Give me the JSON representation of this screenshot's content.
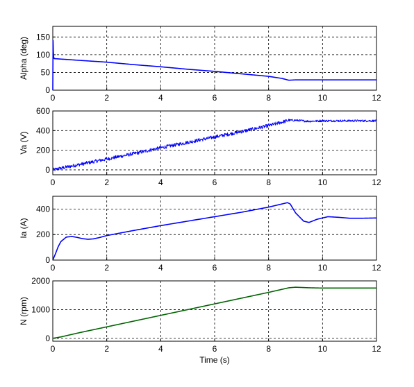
{
  "chart_data": [
    {
      "type": "line",
      "title": "",
      "xlabel": "",
      "ylabel": "Alpha (deg)",
      "xlim": [
        0,
        12
      ],
      "ylim": [
        0,
        180
      ],
      "xticks": [
        0,
        2,
        4,
        6,
        8,
        10,
        12
      ],
      "yticks": [
        0,
        50,
        100,
        150
      ],
      "grid": true,
      "series": [
        {
          "color": "#0000ff",
          "x": [
            0,
            0.01,
            0.02,
            0.03,
            0.05,
            1,
            2,
            3,
            4,
            5,
            6,
            7,
            8,
            8.5,
            8.75,
            9,
            10,
            11,
            12
          ],
          "y": [
            0,
            140,
            110,
            95,
            89,
            84,
            79,
            72,
            66,
            59,
            53,
            46,
            39,
            33,
            28,
            29,
            29,
            29,
            29
          ]
        }
      ]
    },
    {
      "type": "line",
      "title": "",
      "xlabel": "",
      "ylabel": "Va (V)",
      "xlim": [
        0,
        12
      ],
      "ylim": [
        -50,
        600
      ],
      "xticks": [
        0,
        2,
        4,
        6,
        8,
        10,
        12
      ],
      "yticks": [
        0,
        200,
        400,
        600
      ],
      "grid": true,
      "series": [
        {
          "color": "#0000ff",
          "noise_amplitude": 18,
          "x": [
            0,
            0.5,
            1,
            2,
            3,
            4,
            5,
            6,
            7,
            8,
            8.75,
            9,
            9.5,
            10,
            11,
            12
          ],
          "y": [
            0,
            28,
            55,
            110,
            165,
            225,
            280,
            335,
            390,
            450,
            505,
            505,
            495,
            500,
            500,
            500
          ]
        }
      ]
    },
    {
      "type": "line",
      "title": "",
      "xlabel": "",
      "ylabel": "Ia (A)",
      "xlim": [
        0,
        12
      ],
      "ylim": [
        0,
        500
      ],
      "xticks": [
        0,
        2,
        4,
        6,
        8,
        10,
        12
      ],
      "yticks": [
        0,
        200,
        400
      ],
      "grid": true,
      "series": [
        {
          "color": "#0000ff",
          "x": [
            0,
            0.1,
            0.2,
            0.3,
            0.5,
            0.7,
            0.9,
            1.1,
            1.3,
            1.5,
            1.7,
            2,
            3,
            4,
            5,
            6,
            7,
            8,
            8.7,
            8.8,
            9,
            9.3,
            9.5,
            9.8,
            10.2,
            10.6,
            11,
            11.5,
            12
          ],
          "y": [
            0,
            50,
            105,
            145,
            180,
            185,
            178,
            168,
            163,
            166,
            175,
            192,
            232,
            270,
            305,
            340,
            375,
            415,
            450,
            440,
            370,
            305,
            295,
            320,
            340,
            335,
            328,
            328,
            330
          ]
        }
      ]
    },
    {
      "type": "line",
      "title": "",
      "xlabel": "Time (s)",
      "ylabel": "N (rpm)",
      "xlim": [
        0,
        12
      ],
      "ylim": [
        -100,
        2000
      ],
      "xticks": [
        0,
        2,
        4,
        6,
        8,
        10,
        12
      ],
      "yticks": [
        0,
        1000,
        2000
      ],
      "grid": true,
      "series": [
        {
          "color": "#006400",
          "x": [
            0,
            0.3,
            1,
            2,
            3,
            4,
            5,
            6,
            7,
            8,
            8.75,
            9,
            9.5,
            10,
            11,
            12
          ],
          "y": [
            0,
            50,
            200,
            400,
            600,
            800,
            1000,
            1200,
            1400,
            1600,
            1760,
            1780,
            1760,
            1750,
            1750,
            1750
          ]
        }
      ]
    }
  ]
}
